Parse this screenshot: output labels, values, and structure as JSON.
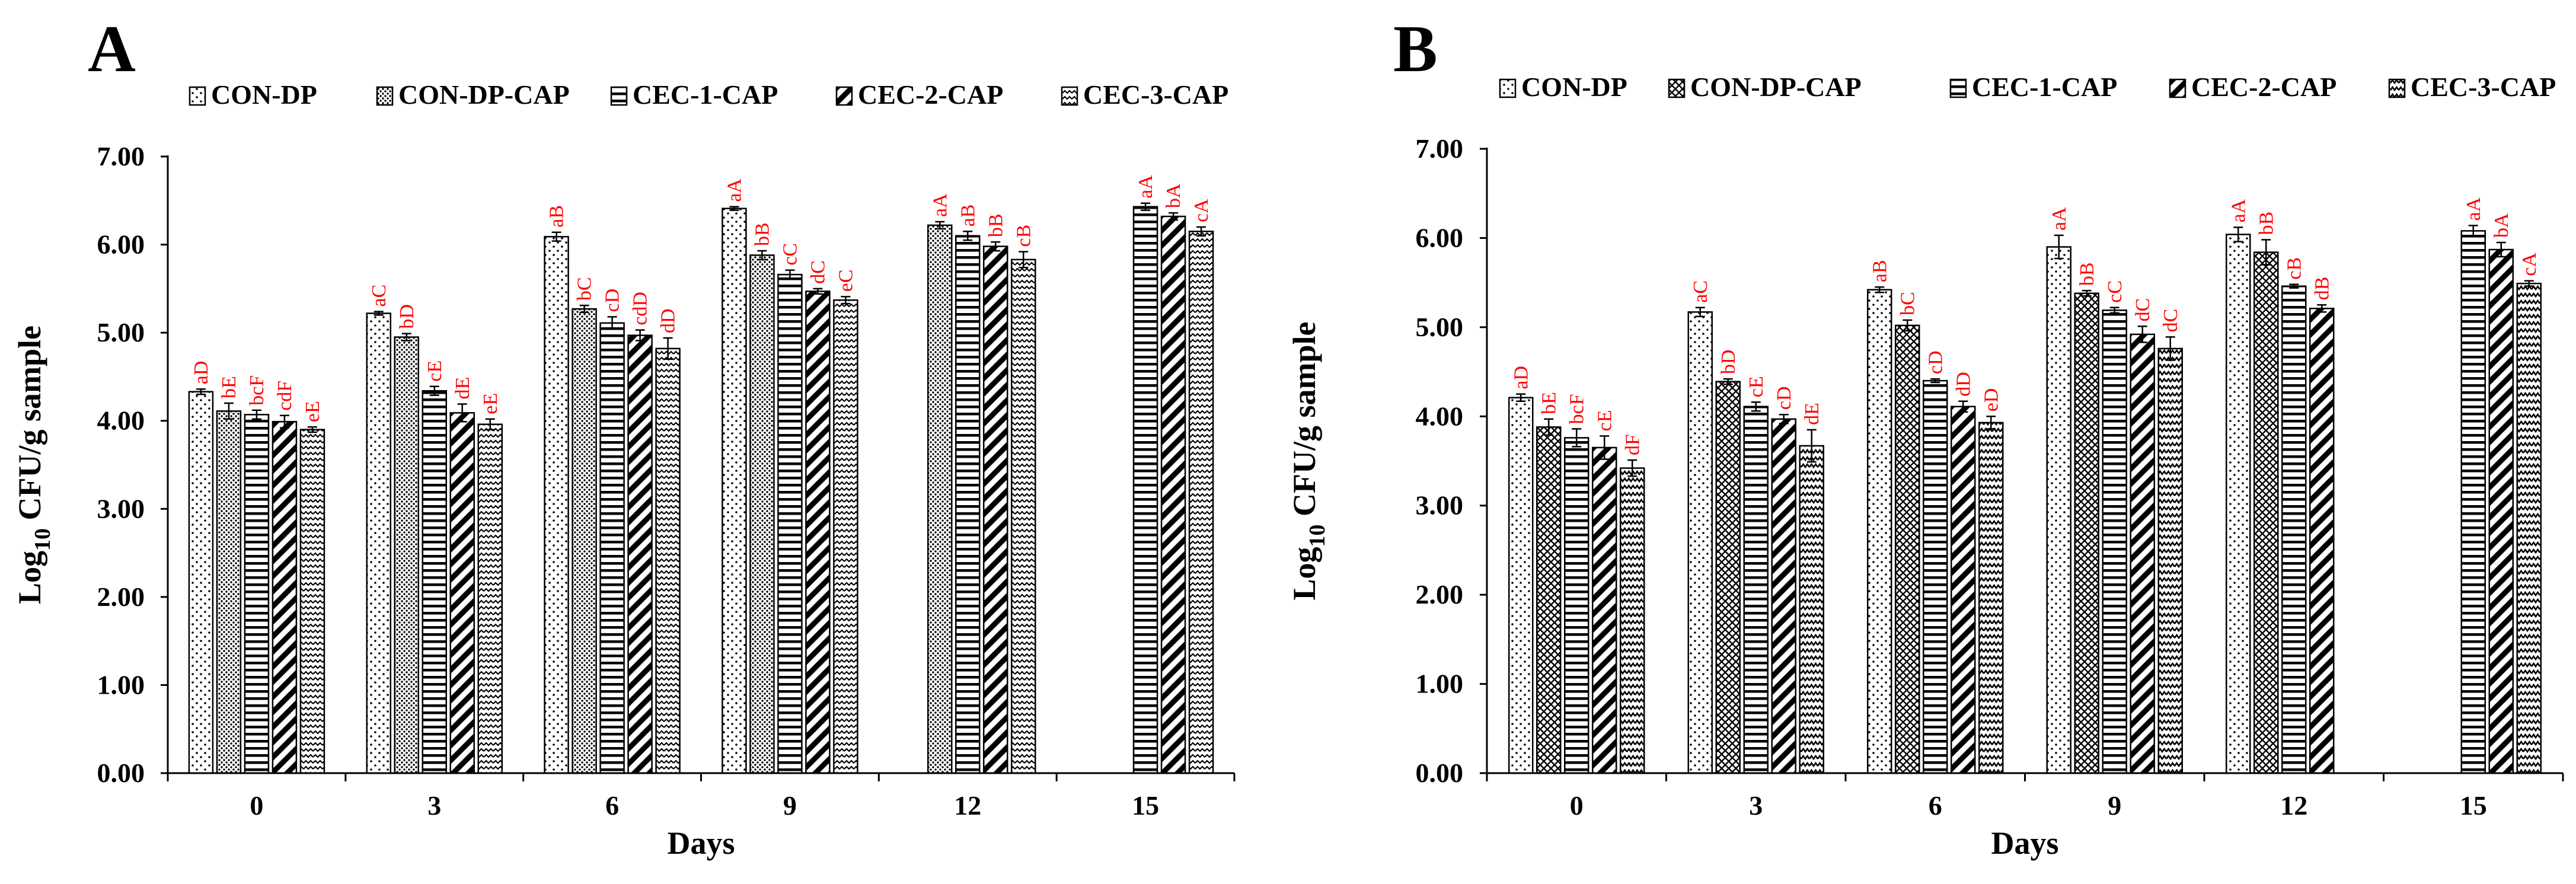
{
  "colors": {
    "axis": "#000000",
    "bar_fill": "#ffffff",
    "sig_label": "#ff0000"
  },
  "chart_data": [
    {
      "panel": "A",
      "type": "bar",
      "title": "",
      "xlabel": "Days",
      "ylabel": "Log10 CFU/g sample",
      "ylabel_main": "Log",
      "ylabel_sub": "10",
      "ylabel_rest": " CFU/g sample",
      "ylim": [
        0,
        7
      ],
      "yticks": [
        "0.00",
        "1.00",
        "2.00",
        "3.00",
        "4.00",
        "5.00",
        "6.00",
        "7.00"
      ],
      "categories": [
        "0",
        "3",
        "6",
        "9",
        "12",
        "15"
      ],
      "legend_position": "top",
      "series": [
        {
          "name": "CON-DP",
          "pattern": "dots",
          "values": [
            4.33,
            5.22,
            6.09,
            6.41,
            null,
            null
          ],
          "errors": [
            0.03,
            0.02,
            0.05,
            0.02,
            null,
            null
          ],
          "labels": [
            "aD",
            "aC",
            "aB",
            "aA",
            "",
            ""
          ]
        },
        {
          "name": "CON-DP-CAP",
          "pattern": "dense-dots",
          "values": [
            4.11,
            4.95,
            5.27,
            5.88,
            6.22,
            null
          ],
          "errors": [
            0.09,
            0.04,
            0.04,
            0.05,
            0.04,
            null
          ],
          "labels": [
            "bE",
            "bD",
            "bC",
            "bB",
            "aA",
            ""
          ]
        },
        {
          "name": "CEC-1-CAP",
          "pattern": "hlines",
          "values": [
            4.07,
            4.34,
            5.11,
            5.66,
            6.1,
            6.43
          ],
          "errors": [
            0.05,
            0.05,
            0.07,
            0.05,
            0.05,
            0.04
          ],
          "labels": [
            "bcF",
            "cE",
            "cD",
            "cC",
            "aB",
            "aA"
          ]
        },
        {
          "name": "CEC-2-CAP",
          "pattern": "diag",
          "values": [
            3.99,
            4.09,
            4.97,
            5.47,
            5.98,
            6.32
          ],
          "errors": [
            0.07,
            0.1,
            0.06,
            0.03,
            0.05,
            0.04
          ],
          "labels": [
            "cdF",
            "dE",
            "cdD",
            "dC",
            "bB",
            "bA"
          ]
        },
        {
          "name": "CEC-3-CAP",
          "pattern": "waves",
          "values": [
            3.9,
            3.96,
            4.82,
            5.37,
            5.83,
            6.15
          ],
          "errors": [
            0.03,
            0.06,
            0.12,
            0.04,
            0.09,
            0.05
          ],
          "labels": [
            "eE",
            "eE",
            "dD",
            "eC",
            "cB",
            "cA"
          ]
        }
      ]
    },
    {
      "panel": "B",
      "type": "bar",
      "title": "",
      "xlabel": "Days",
      "ylabel": "Log10 CFU/g sample",
      "ylabel_main": "Log",
      "ylabel_sub": "10",
      "ylabel_rest": " CFU/g sample",
      "ylim": [
        0,
        7
      ],
      "yticks": [
        "0.00",
        "1.00",
        "2.00",
        "3.00",
        "4.00",
        "5.00",
        "6.00",
        "7.00"
      ],
      "categories": [
        "0",
        "3",
        "6",
        "9",
        "12",
        "15"
      ],
      "legend_position": "top",
      "series": [
        {
          "name": "CON-DP",
          "pattern": "dots",
          "values": [
            4.21,
            5.17,
            5.42,
            5.9,
            6.04,
            null
          ],
          "errors": [
            0.04,
            0.05,
            0.03,
            0.13,
            0.08,
            null
          ],
          "labels": [
            "aD",
            "aC",
            "aB",
            "aA",
            "aA",
            ""
          ]
        },
        {
          "name": "CON-DP-CAP",
          "pattern": "cross",
          "values": [
            3.88,
            4.39,
            5.02,
            5.38,
            5.84,
            null
          ],
          "errors": [
            0.09,
            0.03,
            0.06,
            0.03,
            0.14,
            null
          ],
          "labels": [
            "bE",
            "bD",
            "bC",
            "bB",
            "bB",
            ""
          ]
        },
        {
          "name": "CEC-1-CAP",
          "pattern": "hlines",
          "values": [
            3.76,
            4.11,
            4.4,
            5.19,
            5.46,
            6.08
          ],
          "errors": [
            0.1,
            0.05,
            0.02,
            0.03,
            0.02,
            0.06
          ],
          "labels": [
            "bcF",
            "cE",
            "cD",
            "cC",
            "cB",
            "aA"
          ]
        },
        {
          "name": "CEC-2-CAP",
          "pattern": "diag",
          "values": [
            3.65,
            3.97,
            4.11,
            4.92,
            5.21,
            5.87
          ],
          "errors": [
            0.13,
            0.05,
            0.06,
            0.09,
            0.04,
            0.08
          ],
          "labels": [
            "cE",
            "cD",
            "dD",
            "dC",
            "dB",
            "bA"
          ]
        },
        {
          "name": "CEC-3-CAP",
          "pattern": "zigzag",
          "values": [
            3.42,
            3.67,
            3.93,
            4.76,
            null,
            5.49
          ],
          "errors": [
            0.09,
            0.18,
            0.07,
            0.13,
            null,
            0.03
          ],
          "labels": [
            "dF",
            "dE",
            "eD",
            "dC",
            "",
            "cA"
          ]
        }
      ]
    }
  ]
}
